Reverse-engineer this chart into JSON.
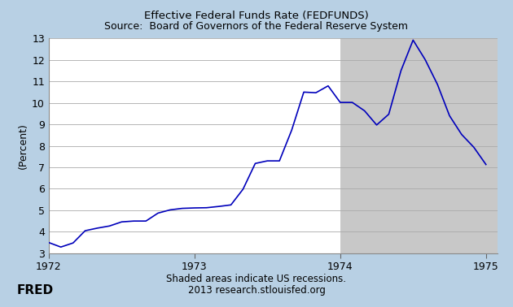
{
  "title_line1": "Effective Federal Funds Rate (FEDFUNDS)",
  "title_line2": "Source:  Board of Governors of the Federal Reserve System",
  "ylabel": "(Percent)",
  "footer_line1": "Shaded areas indicate US recessions.",
  "footer_line2": "2013 research.stlouisfed.org",
  "background_color": "#b8d0e4",
  "plot_bg_color": "#ffffff",
  "recession_color": "#c8c8c8",
  "line_color": "#0000bb",
  "xlim": [
    1972.0,
    1975.08
  ],
  "ylim": [
    3,
    13
  ],
  "yticks": [
    3,
    4,
    5,
    6,
    7,
    8,
    9,
    10,
    11,
    12,
    13
  ],
  "xticks": [
    1972,
    1973,
    1974,
    1975
  ],
  "recession_start": 1973.999,
  "recession_end": 1975.1,
  "data_x": [
    1972.0,
    1972.083,
    1972.167,
    1972.25,
    1972.333,
    1972.417,
    1972.5,
    1972.583,
    1972.667,
    1972.75,
    1972.833,
    1972.917,
    1973.0,
    1973.083,
    1973.167,
    1973.25,
    1973.333,
    1973.417,
    1973.5,
    1973.583,
    1973.667,
    1973.75,
    1973.833,
    1973.917,
    1974.0,
    1974.083,
    1974.167,
    1974.25,
    1974.333,
    1974.417,
    1974.5,
    1974.583,
    1974.667,
    1974.75,
    1974.833,
    1974.917,
    1975.0
  ],
  "data_y": [
    3.5,
    3.29,
    3.48,
    4.05,
    4.17,
    4.27,
    4.46,
    4.5,
    4.5,
    4.87,
    5.02,
    5.09,
    5.11,
    5.12,
    5.18,
    5.25,
    5.98,
    7.18,
    7.3,
    7.3,
    8.73,
    10.5,
    10.47,
    10.79,
    10.02,
    10.02,
    9.63,
    8.97,
    9.47,
    11.5,
    12.92,
    12.01,
    10.86,
    9.4,
    8.53,
    7.93,
    7.13
  ]
}
